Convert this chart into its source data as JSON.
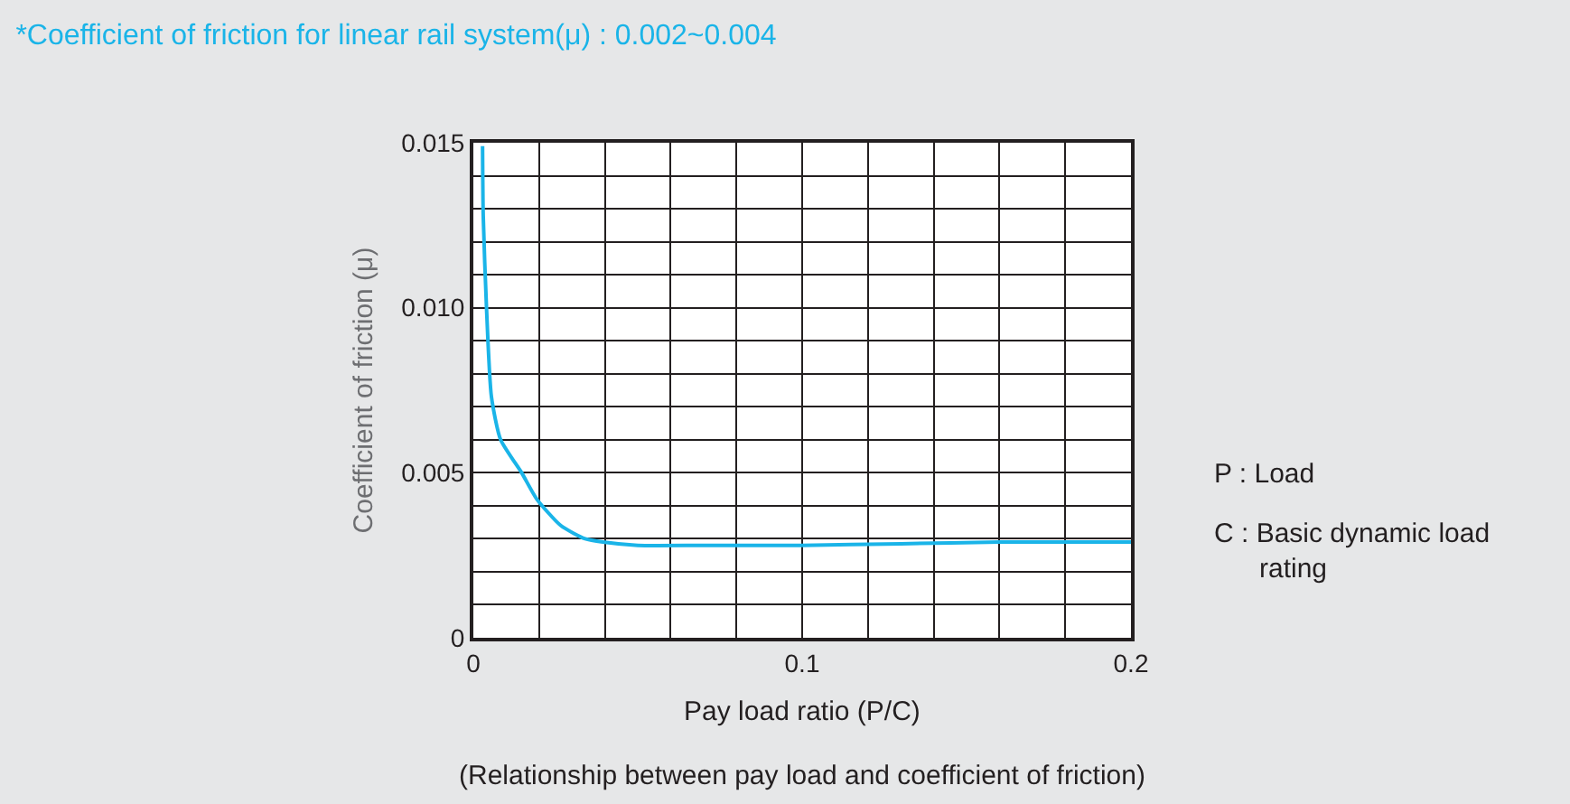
{
  "chart_data": {
    "type": "line",
    "title": "*Coefficient of friction for linear rail system(μ) : 0.002~0.004",
    "xlabel": "Pay load ratio (P/C)",
    "ylabel": "Coefficient of friction (μ)",
    "annotations": [
      "P : Load",
      "C : Basic dynamic load rating",
      "(Relationship between pay load and coefficient of friction)"
    ],
    "series": [
      {
        "color": "#1ab4e8",
        "x": [
          0.0028,
          0.003,
          0.004,
          0.0055,
          0.0083,
          0.0147,
          0.0193,
          0.0266,
          0.034,
          0.0394,
          0.05,
          0.07,
          0.1,
          0.13,
          0.16,
          0.2
        ],
        "values": [
          0.0149,
          0.0128,
          0.01,
          0.0073,
          0.006,
          0.005,
          0.0042,
          0.0034,
          0.003,
          0.0029,
          0.0028,
          0.0028,
          0.0028,
          0.00285,
          0.0029,
          0.0029
        ]
      }
    ],
    "xlim": [
      0,
      0.2
    ],
    "ylim": [
      0,
      0.015
    ],
    "xticks": [
      0,
      {
        "value": 0.02,
        "label": null
      },
      {
        "value": 0.04,
        "label": null
      },
      {
        "value": 0.06,
        "label": null
      },
      {
        "value": 0.08,
        "label": null
      },
      0.1,
      {
        "value": 0.12,
        "label": null
      },
      {
        "value": 0.14,
        "label": null
      },
      {
        "value": 0.16,
        "label": null
      },
      {
        "value": 0.18,
        "label": null
      },
      0.2
    ],
    "yticks": [
      0,
      {
        "value": 0.001,
        "label": null
      },
      {
        "value": 0.002,
        "label": null
      },
      {
        "value": 0.003,
        "label": null
      },
      {
        "value": 0.004,
        "label": null
      },
      0.005,
      {
        "value": 0.006,
        "label": null
      },
      {
        "value": 0.007,
        "label": null
      },
      {
        "value": 0.008,
        "label": null
      },
      {
        "value": 0.009,
        "label": null
      },
      {
        "value": 0.01,
        "label": "0.010"
      },
      {
        "value": 0.011,
        "label": null
      },
      {
        "value": 0.012,
        "label": null
      },
      {
        "value": 0.013,
        "label": null
      },
      {
        "value": 0.014,
        "label": null
      },
      0.015
    ],
    "grid": true,
    "legend": false,
    "marker": "none",
    "line_style": "solid"
  }
}
